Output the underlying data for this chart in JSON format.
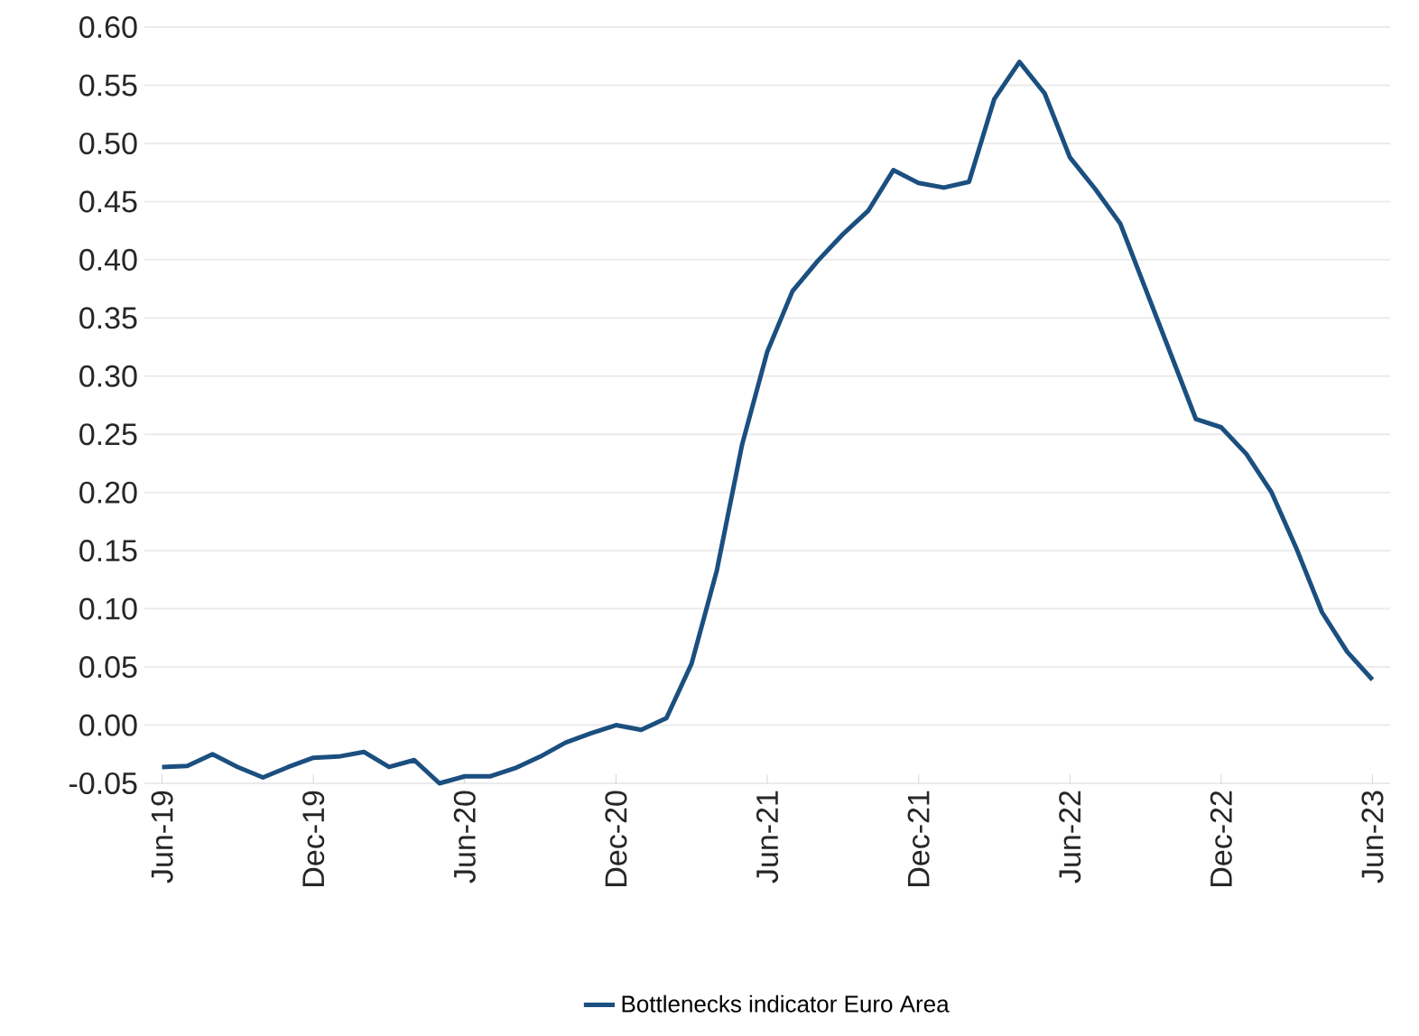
{
  "chart_data": {
    "type": "line",
    "categories": [
      "Jun-19",
      null,
      null,
      null,
      null,
      null,
      "Dec-19",
      null,
      null,
      null,
      null,
      null,
      "Jun-20",
      null,
      null,
      null,
      null,
      null,
      "Dec-20",
      null,
      null,
      null,
      null,
      null,
      "Jun-21",
      null,
      null,
      null,
      null,
      null,
      "Dec-21",
      null,
      null,
      null,
      null,
      null,
      "Jun-22",
      null,
      null,
      null,
      null,
      null,
      "Dec-22",
      null,
      null,
      null,
      null,
      null,
      "Jun-23"
    ],
    "series": [
      {
        "name": "Bottlenecks indicator Euro Area",
        "color": "#1b4f7f",
        "values": [
          -0.036,
          -0.035,
          -0.025,
          -0.036,
          -0.045,
          -0.036,
          -0.028,
          -0.027,
          -0.023,
          -0.036,
          -0.03,
          -0.05,
          -0.044,
          -0.044,
          -0.037,
          -0.027,
          -0.015,
          -0.007,
          0.0,
          -0.004,
          0.006,
          0.053,
          0.133,
          0.241,
          0.321,
          0.373,
          0.399,
          0.422,
          0.442,
          0.477,
          0.466,
          0.462,
          0.467,
          0.538,
          0.57,
          0.543,
          0.488,
          0.461,
          0.431,
          0.375,
          0.319,
          0.263,
          0.256,
          0.233,
          0.2,
          0.151,
          0.097,
          0.063,
          0.039
        ]
      }
    ],
    "ylim": [
      -0.05,
      0.6
    ],
    "yticks": [
      -0.05,
      {
        "value": 0,
        "label": "0.00"
      },
      0.05,
      {
        "value": 0.1,
        "label": "0.10"
      },
      0.15,
      {
        "value": 0.2,
        "label": "0.20"
      },
      0.25,
      {
        "value": 0.3,
        "label": "0.30"
      },
      0.35,
      {
        "value": 0.4,
        "label": "0.40"
      },
      0.45,
      {
        "value": 0.5,
        "label": "0.50"
      },
      0.55,
      {
        "value": 0.6,
        "label": "0.60"
      }
    ],
    "grid": "y",
    "legend": "bottom",
    "marker": "none",
    "line_style": "solid"
  }
}
